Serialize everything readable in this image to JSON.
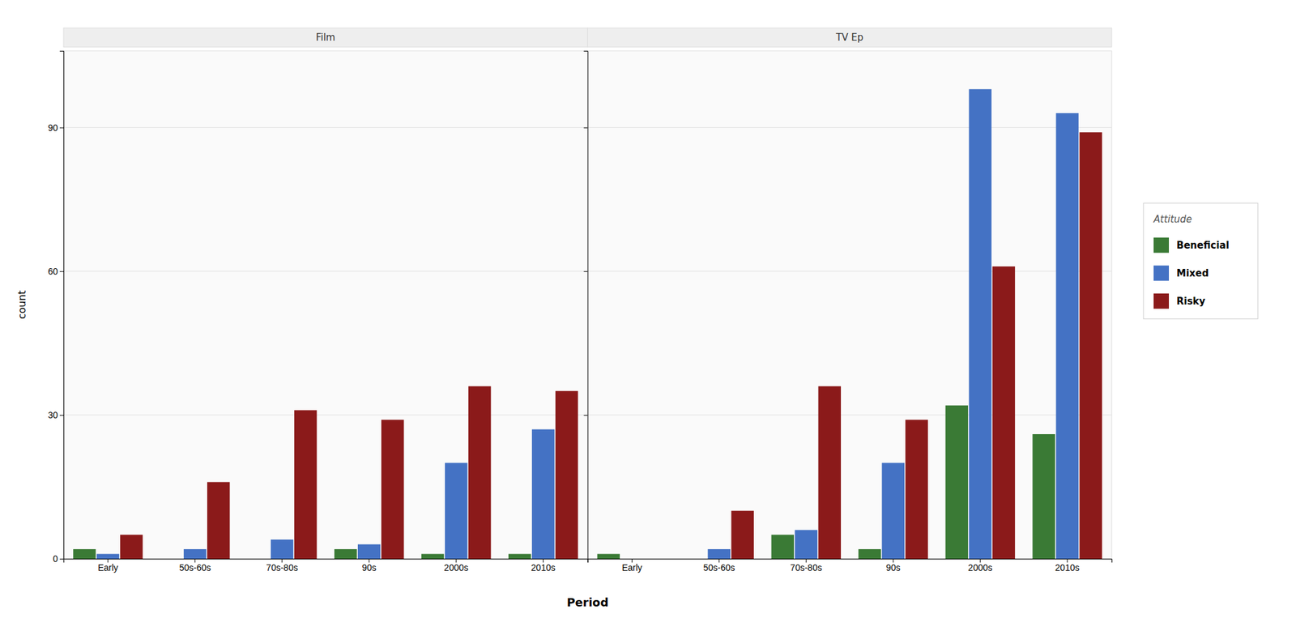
{
  "chart_data": [
    {
      "type": "bar",
      "title": "Film",
      "categories": [
        "Early",
        "50s-60s",
        "70s-80s",
        "90s",
        "2000s",
        "2010s"
      ],
      "series": [
        {
          "name": "Beneficial",
          "color": "#3a7a35",
          "values": [
            2,
            0,
            0,
            2,
            1,
            1
          ]
        },
        {
          "name": "Mixed",
          "color": "#4472c4",
          "values": [
            1,
            2,
            4,
            3,
            20,
            27
          ]
        },
        {
          "name": "Risky",
          "color": "#8b1a1a",
          "values": [
            5,
            16,
            31,
            29,
            36,
            35
          ]
        }
      ],
      "x_label": "Period",
      "y_label": "count",
      "legend_title": "Attitude",
      "ylim": [
        0,
        106
      ],
      "yticks": [
        0,
        30,
        60,
        90
      ],
      "grid": true
    },
    {
      "type": "bar",
      "title": "TV Ep",
      "categories": [
        "Early",
        "50s-60s",
        "70s-80s",
        "90s",
        "2000s",
        "2010s"
      ],
      "series": [
        {
          "name": "Beneficial",
          "color": "#3a7a35",
          "values": [
            1,
            0,
            5,
            2,
            32,
            26
          ]
        },
        {
          "name": "Mixed",
          "color": "#4472c4",
          "values": [
            0,
            2,
            6,
            20,
            98,
            93
          ]
        },
        {
          "name": "Risky",
          "color": "#8b1a1a",
          "values": [
            0,
            10,
            36,
            29,
            61,
            89
          ]
        }
      ],
      "ylim": [
        0,
        106
      ],
      "yticks": [
        0,
        30,
        60,
        90
      ],
      "grid": true,
      "tick_labels": "x"
    }
  ]
}
